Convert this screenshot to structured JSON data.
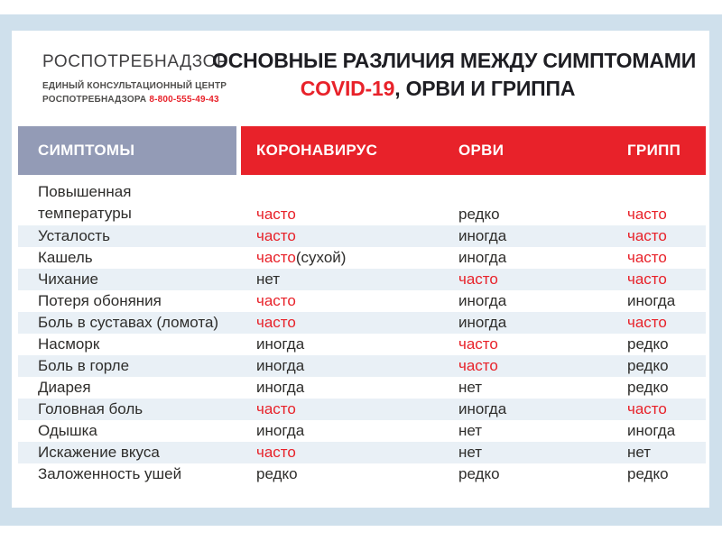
{
  "colors": {
    "frame_blue": "#cfe0ec",
    "card_white": "#ffffff",
    "header_slate": "#939bb6",
    "accent_red": "#e8222a",
    "row_stripe": "#e9f0f6",
    "text_dark": "#2e2d2b"
  },
  "brand": {
    "logo": "РОСПОТРЕБНАДЗОР",
    "sub_line1": "ЕДИНЫЙ КОНСУЛЬТАЦИОННЫЙ ЦЕНТР",
    "sub_line2": "РОСПОТРЕБНАДЗОРА",
    "phone": "8-800-555-49-43"
  },
  "title": {
    "line1": "ОСНОВНЫЕ РАЗЛИЧИЯ МЕЖДУ СИМПТОМАМИ",
    "line2_accent": "COVID-19",
    "line2_rest": ", ОРВИ И ГРИППА"
  },
  "table": {
    "headers": {
      "symptoms": "СИМПТОМЫ",
      "coronavirus": "КОРОНАВИРУС",
      "orvi": "ОРВИ",
      "gripp": "ГРИПП"
    },
    "rows": [
      {
        "symptom_lines": [
          "Повышенная",
          "температуры"
        ],
        "values": [
          {
            "text": "часто",
            "red": true
          },
          {
            "text": "редко",
            "red": false
          },
          {
            "text": "часто",
            "red": true
          }
        ]
      },
      {
        "symptom_lines": [
          "Усталость"
        ],
        "values": [
          {
            "text": "часто",
            "red": true
          },
          {
            "text": "иногда",
            "red": false
          },
          {
            "text": "часто",
            "red": true
          }
        ]
      },
      {
        "symptom_lines": [
          "Кашель"
        ],
        "values": [
          {
            "text": "часто",
            "red": true,
            "suffix": "(сухой)"
          },
          {
            "text": "иногда",
            "red": false
          },
          {
            "text": "часто",
            "red": true
          }
        ]
      },
      {
        "symptom_lines": [
          "Чихание"
        ],
        "values": [
          {
            "text": "нет",
            "red": false
          },
          {
            "text": "часто",
            "red": true
          },
          {
            "text": "часто",
            "red": true
          }
        ]
      },
      {
        "symptom_lines": [
          "Потеря обоняния"
        ],
        "values": [
          {
            "text": "часто",
            "red": true
          },
          {
            "text": "иногда",
            "red": false
          },
          {
            "text": "иногда",
            "red": false
          }
        ]
      },
      {
        "symptom_lines": [
          "Боль в суставах (ломота)"
        ],
        "values": [
          {
            "text": "часто",
            "red": true
          },
          {
            "text": "иногда",
            "red": false
          },
          {
            "text": "часто",
            "red": true
          }
        ]
      },
      {
        "symptom_lines": [
          "Насморк"
        ],
        "values": [
          {
            "text": "иногда",
            "red": false
          },
          {
            "text": "часто",
            "red": true
          },
          {
            "text": "редко",
            "red": false
          }
        ]
      },
      {
        "symptom_lines": [
          "Боль в горле"
        ],
        "values": [
          {
            "text": "иногда",
            "red": false
          },
          {
            "text": "часто",
            "red": true
          },
          {
            "text": "редко",
            "red": false
          }
        ]
      },
      {
        "symptom_lines": [
          "Диарея"
        ],
        "values": [
          {
            "text": "иногда",
            "red": false
          },
          {
            "text": "нет",
            "red": false
          },
          {
            "text": "редко",
            "red": false
          }
        ]
      },
      {
        "symptom_lines": [
          "Головная боль"
        ],
        "values": [
          {
            "text": "часто",
            "red": true
          },
          {
            "text": "иногда",
            "red": false
          },
          {
            "text": "часто",
            "red": true
          }
        ]
      },
      {
        "symptom_lines": [
          "Одышка"
        ],
        "values": [
          {
            "text": "иногда",
            "red": false
          },
          {
            "text": "нет",
            "red": false
          },
          {
            "text": "иногда",
            "red": false
          }
        ]
      },
      {
        "symptom_lines": [
          "Искажение вкуса"
        ],
        "values": [
          {
            "text": "часто",
            "red": true
          },
          {
            "text": "нет",
            "red": false
          },
          {
            "text": "нет",
            "red": false
          }
        ]
      },
      {
        "symptom_lines": [
          "Заложенность ушей"
        ],
        "values": [
          {
            "text": "редко",
            "red": false
          },
          {
            "text": "редко",
            "red": false
          },
          {
            "text": "редко",
            "red": false
          }
        ]
      }
    ]
  }
}
